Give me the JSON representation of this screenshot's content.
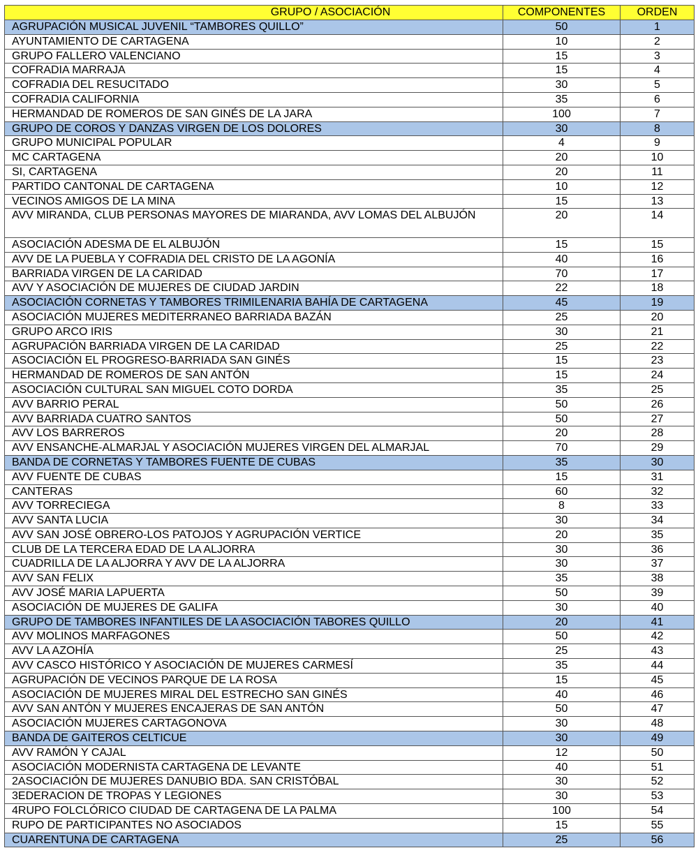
{
  "header": {
    "group": "GRUPO / ASOCIACIÓN",
    "components": "COMPONENTES",
    "order": "ORDEN"
  },
  "colors": {
    "header_bg": "#ffff33",
    "highlight_bg": "#abc6e8"
  },
  "rows": [
    {
      "name": "AGRUPACIÓN MUSICAL JUVENIL “TAMBORES QUILLO”",
      "components": "50",
      "order": "1",
      "highlight": true
    },
    {
      "name": "AYUNTAMIENTO DE CARTAGENA",
      "components": "10",
      "order": "2"
    },
    {
      "name": "GRUPO FALLERO VALENCIANO",
      "components": "15",
      "order": "3"
    },
    {
      "name": "COFRADIA MARRAJA",
      "components": "15",
      "order": "4"
    },
    {
      "name": "COFRADIA DEL RESUCITADO",
      "components": "30",
      "order": "5"
    },
    {
      "name": "COFRADIA CALIFORNIA",
      "components": "35",
      "order": "6"
    },
    {
      "name": "HERMANDAD DE ROMEROS DE SAN GINÉS DE LA JARA",
      "components": "100",
      "order": "7"
    },
    {
      "name": "GRUPO DE COROS Y DANZAS VIRGEN DE LOS DOLORES",
      "components": "30",
      "order": "8",
      "highlight": true
    },
    {
      "name": "GRUPO MUNICIPAL POPULAR",
      "components": "4",
      "order": "9"
    },
    {
      "name": "MC CARTAGENA",
      "components": "20",
      "order": "10"
    },
    {
      "name": "SI, CARTAGENA",
      "components": "20",
      "order": "11"
    },
    {
      "name": "PARTIDO CANTONAL DE CARTAGENA",
      "components": "10",
      "order": "12"
    },
    {
      "name": "VECINOS AMIGOS DE LA MINA",
      "components": "15",
      "order": "13"
    },
    {
      "name": "AVV MIRANDA, CLUB PERSONAS MAYORES DE MIARANDA, AVV LOMAS DEL ALBUJÓN",
      "components": "20",
      "order": "14",
      "tall": true
    },
    {
      "name": "ASOCIACIÓN ADESMA DE EL ALBUJÓN",
      "components": "15",
      "order": "15"
    },
    {
      "name": "AVV DE LA PUEBLA Y COFRADIA DEL CRISTO DE LA AGONÍA",
      "components": "40",
      "order": "16"
    },
    {
      "name": "BARRIADA VIRGEN DE LA CARIDAD",
      "components": "70",
      "order": "17"
    },
    {
      "name": "AVV Y ASOCIACIÓN DE MUJERES DE CIUDAD JARDIN",
      "components": "22",
      "order": "18"
    },
    {
      "name": "ASOCIACIÓN CORNETAS Y TAMBORES TRIMILENARIA BAHÍA DE CARTAGENA",
      "components": "45",
      "order": "19",
      "highlight": true
    },
    {
      "name": "ASOCIACIÓN MUJERES MEDITERRANEO BARRIADA BAZÁN",
      "components": "25",
      "order": "20"
    },
    {
      "name": "GRUPO ARCO IRIS",
      "components": "30",
      "order": "21"
    },
    {
      "name": "AGRUPACIÓN BARRIADA VIRGEN DE LA CARIDAD",
      "components": "25",
      "order": "22"
    },
    {
      "name": "ASOCIACIÓN EL PROGRESO-BARRIADA SAN GINÉS",
      "components": "15",
      "order": "23"
    },
    {
      "name": "HERMANDAD DE ROMEROS DE SAN ANTÓN",
      "components": "15",
      "order": "24"
    },
    {
      "name": "ASOCIACIÓN CULTURAL SAN MIGUEL COTO DORDA",
      "components": "35",
      "order": "25"
    },
    {
      "name": "AVV BARRIO PERAL",
      "components": "50",
      "order": "26"
    },
    {
      "name": "AVV BARRIADA CUATRO SANTOS",
      "components": "50",
      "order": "27"
    },
    {
      "name": "AVV LOS BARREROS",
      "components": "20",
      "order": "28"
    },
    {
      "name": "AVV ENSANCHE-ALMARJAL Y ASOCIACIÓN MUJERES VIRGEN DEL ALMARJAL",
      "components": "70",
      "order": "29"
    },
    {
      "name": "BANDA DE CORNETAS Y TAMBORES FUENTE DE CUBAS",
      "components": "35",
      "order": "30",
      "highlight": true
    },
    {
      "name": "AVV FUENTE DE CUBAS",
      "components": "15",
      "order": "31"
    },
    {
      "name": "CANTERAS",
      "components": "60",
      "order": "32"
    },
    {
      "name": "AVV TORRECIEGA",
      "components": "8",
      "order": "33"
    },
    {
      "name": "AVV SANTA LUCIA",
      "components": "30",
      "order": "34"
    },
    {
      "name": "AVV SAN JOSÉ OBRERO-LOS PATOJOS Y AGRUPACIÓN VERTICE",
      "components": "20",
      "order": "35"
    },
    {
      "name": "CLUB DE LA TERCERA EDAD DE LA ALJORRA",
      "components": "30",
      "order": "36"
    },
    {
      "name": "CUADRILLA DE LA ALJORRA Y AVV DE LA ALJORRA",
      "components": "30",
      "order": "37"
    },
    {
      "name": "AVV SAN FELIX",
      "components": "35",
      "order": "38"
    },
    {
      "name": "AVV JOSÉ MARIA LAPUERTA",
      "components": "50",
      "order": "39"
    },
    {
      "name": "ASOCIACIÓN DE MUJERES DE GALIFA",
      "components": "30",
      "order": "40"
    },
    {
      "name": "GRUPO DE TAMBORES INFANTILES DE LA ASOCIACIÓN TABORES QUILLO",
      "components": "20",
      "order": "41",
      "highlight": true
    },
    {
      "name": "AVV MOLINOS MARFAGONES",
      "components": "50",
      "order": "42"
    },
    {
      "name": "AVV LA AZOHÍA",
      "components": "25",
      "order": "43"
    },
    {
      "name": "AVV CASCO HISTÓRICO Y ASOCIACIÓN DE MUJERES CARMESÍ",
      "components": "35",
      "order": "44"
    },
    {
      "name": "AGRUPACIÓN DE VECINOS PARQUE DE LA ROSA",
      "components": "15",
      "order": "45"
    },
    {
      "name": "ASOCIACIÓN DE MUJERES MIRAL DEL ESTRECHO SAN GINÉS",
      "components": "40",
      "order": "46"
    },
    {
      "name": "AVV SAN ANTÓN Y MUJERES ENCAJERAS DE SAN ANTÓN",
      "components": "50",
      "order": "47"
    },
    {
      "name": "ASOCIACIÓN MUJERES CARTAGONOVA",
      "components": "30",
      "order": "48"
    },
    {
      "name": "BANDA DE GAITEROS CELTICUE",
      "components": "30",
      "order": "49",
      "highlight": true
    },
    {
      "name": "AVV RAMÓN Y CAJAL",
      "components": "12",
      "order": "50"
    },
    {
      "name": "ASOCIACIÓN MODERNISTA CARTAGENA DE LEVANTE",
      "components": "40",
      "order": "51"
    },
    {
      "name": "2ASOCIACIÓN DE MUJERES DANUBIO BDA. SAN CRISTÓBAL",
      "components": "30",
      "order": "52"
    },
    {
      "name": "3EDERACION DE TROPAS Y LEGIONES",
      "components": "30",
      "order": "53"
    },
    {
      "name": "4RUPO FOLCLÓRICO CIUDAD DE CARTAGENA DE LA PALMA",
      "components": "100",
      "order": "54"
    },
    {
      "name": "RUPO DE PARTICIPANTES NO ASOCIADOS",
      "components": "15",
      "order": "55"
    },
    {
      "name": "CUARENTUNA DE CARTAGENA",
      "components": "25",
      "order": "56",
      "highlight": true
    }
  ]
}
